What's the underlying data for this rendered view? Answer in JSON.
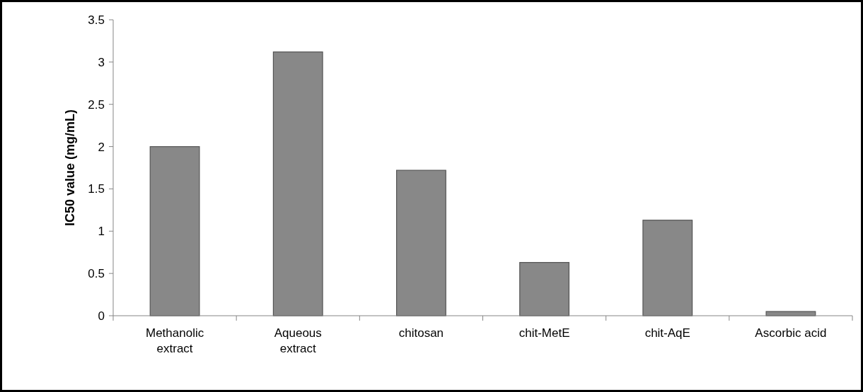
{
  "chart_data": {
    "type": "bar",
    "ylabel": "IC50 value (mg/mL)",
    "categories": [
      "Methanolic extract",
      "Aqueous extract",
      "chitosan",
      "chit-MetE",
      "chit-AqE",
      "Ascorbic acid"
    ],
    "values": [
      2.0,
      3.12,
      1.72,
      0.63,
      1.13,
      0.05
    ],
    "color": "#888888",
    "ylim": [
      0,
      3.5
    ],
    "yticks": [
      0,
      0.5,
      1,
      1.5,
      2,
      2.5,
      3,
      3.5
    ]
  }
}
